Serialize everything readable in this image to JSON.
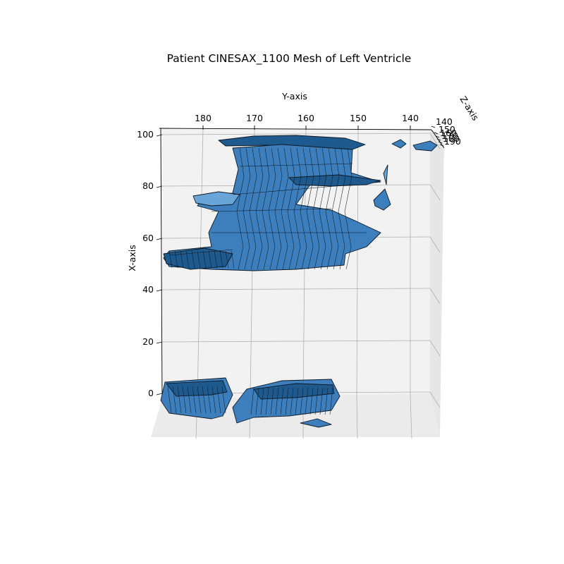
{
  "chart_data": {
    "type": "mesh3d",
    "title": "Patient CINESAX_1100 Mesh of Left Ventricle",
    "xlabel": "X-axis",
    "ylabel": "Y-axis",
    "zlabel": "Z-axis",
    "x_ticks": [
      "0",
      "20",
      "40",
      "60",
      "80",
      "100"
    ],
    "y_ticks": [
      "180",
      "170",
      "160",
      "150",
      "140"
    ],
    "z_ticks": [
      "140",
      "150",
      "160",
      "170",
      "180",
      "190"
    ],
    "grid": true,
    "mesh_color": "#3d7fbd",
    "edge_color": "#0d1a26",
    "pane_color": "#f2f2f2"
  }
}
